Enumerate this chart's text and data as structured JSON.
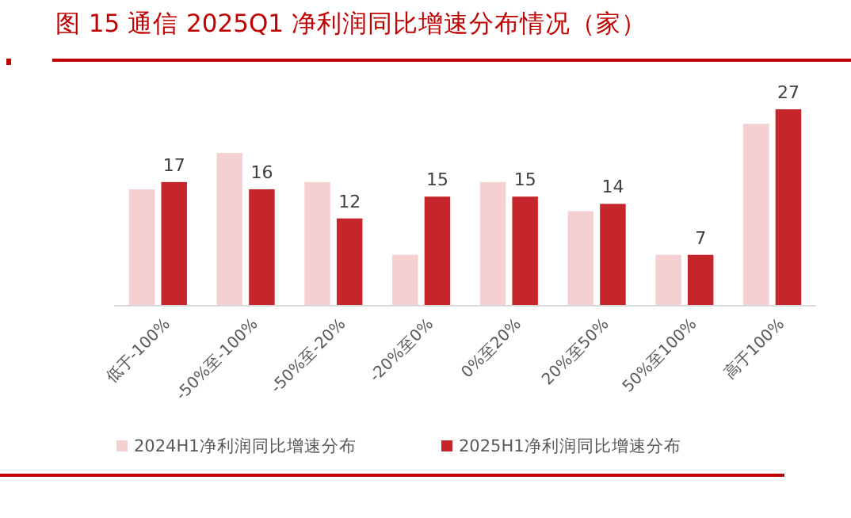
{
  "chart_data": {
    "type": "bar",
    "title": "图 15 通信 2025Q1 净利润同比增速分布情况（家）",
    "categories": [
      "低于-100%",
      "-50%至-100%",
      "-50%至-20%",
      "-20%至0%",
      "0%至20%",
      "20%至50%",
      "50%至100%",
      "高于100%"
    ],
    "series": [
      {
        "name": "2024H1净利润同比增速分布",
        "color": "#f5d0d2",
        "values": [
          16,
          21,
          17,
          7,
          17,
          13,
          7,
          25
        ]
      },
      {
        "name": "2025H1净利润同比增速分布",
        "color": "#c4262b",
        "values": [
          17,
          16,
          12,
          15,
          15,
          14,
          7,
          27
        ],
        "value_labels": [
          "17",
          "16",
          "12",
          "15",
          "15",
          "14",
          "7",
          "27"
        ]
      }
    ],
    "legend": "bottom",
    "grid": false
  }
}
